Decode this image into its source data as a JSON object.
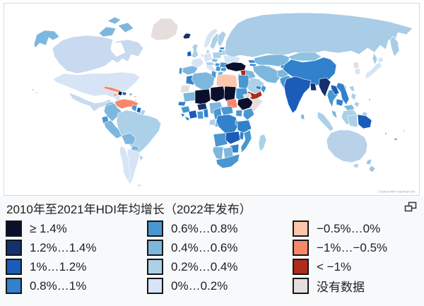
{
  "legend": {
    "title": "2010年至2021年HDI年均增长（2022年发布）",
    "columns": [
      {
        "items": [
          {
            "label": "≥ 1.4%",
            "color": "#0a102c"
          },
          {
            "label": "1.2%…1.4%",
            "color": "#14316f"
          },
          {
            "label": "1%…1.2%",
            "color": "#1b5cb8"
          },
          {
            "label": "0.8%…1%",
            "color": "#3181cd"
          }
        ]
      },
      {
        "items": [
          {
            "label": "0.6%…0.8%",
            "color": "#4997d0"
          },
          {
            "label": "0.4%…0.6%",
            "color": "#7db7dd"
          },
          {
            "label": "0.2%…0.4%",
            "color": "#abd0e8"
          },
          {
            "label": "0%…0.2%",
            "color": "#d6e4f5"
          }
        ]
      },
      {
        "items": [
          {
            "label": "−0.5%…0%",
            "color": "#fcc6ac"
          },
          {
            "label": "−1%…−0.5%",
            "color": "#f8876a"
          },
          {
            "label": "< −1%",
            "color": "#ae2c1e"
          },
          {
            "label": "没有数据",
            "color": "#e6dedd"
          }
        ]
      }
    ]
  },
  "icons": {
    "popout": "open-in-new-window"
  },
  "map": {
    "attribution": "Created with mapchart.net",
    "ocean_color": "#ffffff",
    "border_color": "#ffffff",
    "palette": {
      "d1": "#0a102c",
      "d2": "#14316f",
      "d3": "#1b5cb8",
      "d4": "#3181cd",
      "d5": "#4997d0",
      "d6": "#7db7dd",
      "d7": "#abd0e8",
      "d8": "#d6e4f5",
      "n1": "#fcc6ac",
      "n2": "#f8876a",
      "n3": "#ae2c1e",
      "nd": "#e6dedd",
      "ru": "#a9cce7",
      "ca": "#c8daf0",
      "mn": "#90c2e1",
      "au": "#b9d2ea",
      "nz": "#9cc6e3",
      "w": "#ffffff"
    },
    "regions": [
      [
        "greenland",
        "nd",
        "M213,52L217,35L228,26L242,26L252,36L249,49L237,56L221,57Z"
      ],
      [
        "alaska",
        "d6",
        "M48,63L52,49L63,43L77,44L84,52L75,57L69,53L65,64L56,61L50,68Z"
      ],
      [
        "canada",
        "ca",
        "M74,68L88,57L104,52L124,50L144,52L160,56L158,63L167,58L181,56L196,60L203,68L196,80L186,77L181,87L173,83L167,89L159,85L149,93L138,97L124,101L109,104L94,100L84,90L77,80Z"
      ],
      [
        "hudson-bay",
        "w",
        "M158,62L171,60L177,74L165,80L157,71Z"
      ],
      [
        "arctic-islands",
        "d6",
        "M140,47L150,38L164,40L159,50L146,52Z M167,36L181,32L189,40L177,46Z M152,30L162,24L171,28L163,34Z"
      ],
      [
        "usa",
        "d8",
        "M75,112L90,104L110,106L130,104L152,104L172,102L190,104L198,109L191,118L183,125L175,131L169,138L175,146L169,149L163,139L149,134L134,136L119,132L104,126L89,120L79,116Z"
      ],
      [
        "hawaii",
        "d7",
        "M45,126L48,126L48,128L45,128Z M51,130L53,130L53,132L51,132Z"
      ],
      [
        "mexico",
        "ca",
        "M97,131L111,136L123,142L135,146L147,144L155,140L159,146L151,150L141,152L133,158L127,150L115,146L103,140Z"
      ],
      [
        "yucatan",
        "d6",
        "M149,147L160,144L162,151L153,154Z"
      ],
      [
        "guatemala",
        "d3",
        "M151,152L160,154L156,161Z"
      ],
      [
        "honduras",
        "d4",
        "M159,154L170,156L166,162L158,160Z"
      ],
      [
        "nicaragua",
        "d4",
        "M161,162L170,161L167,169Z"
      ],
      [
        "costa-rica-panama",
        "d6",
        "M165,169L175,168L182,172L173,175Z"
      ],
      [
        "cuba",
        "n2",
        "M148,122L159,124L171,128L169,131L157,128L147,125Z"
      ],
      [
        "jamaica",
        "n2",
        "M161,133L166,133L165,136L160,135Z"
      ],
      [
        "haiti",
        "d1",
        "M168,129L173,130L172,135L167,134Z"
      ],
      [
        "dominican-republic",
        "d3",
        "M174,130L179,131L178,135L173,134Z"
      ],
      [
        "puerto-rico",
        "d6",
        "M183,132L187,132L187,135L183,135Z"
      ],
      [
        "lesser-antilles",
        "n2",
        "M190,136L192,136L192,138L190,138Z M191,141L193,141L193,143L191,143Z"
      ],
      [
        "venezuela",
        "n2",
        "M162,144L174,140L187,142L196,146L192,152L182,151L172,154L165,150Z"
      ],
      [
        "colombia",
        "d6",
        "M149,150L162,146L166,152L172,157L167,164L159,172L153,166L147,158Z"
      ],
      [
        "guyana",
        "d5",
        "M188,148L194,150L192,158L186,154Z"
      ],
      [
        "suriname",
        "d3",
        "M195,152L200,153L198,160L193,158Z"
      ],
      [
        "french-guiana",
        "d7",
        "M201,155L206,157L203,163L198,161Z"
      ],
      [
        "ecuador",
        "d5",
        "M144,166L152,164L154,172L146,175Z"
      ],
      [
        "peru",
        "d6",
        "M147,174L157,170L163,178L170,185L174,192L165,196L156,188L149,180Z"
      ],
      [
        "brazil",
        "d7",
        "M167,160L179,156L191,158L200,162L211,164L222,168L228,175L225,185L217,195L209,205L201,213L195,218L189,212L183,205L176,198L171,190L167,181L165,171Z"
      ],
      [
        "bolivia",
        "d6",
        "M172,192L184,188L192,195L189,204L177,204Z"
      ],
      [
        "paraguay",
        "d6",
        "M187,206L197,208L193,218L185,214Z"
      ],
      [
        "argentina",
        "d8",
        "M180,211L192,213L198,217L196,227L192,239L188,253L184,261L179,252L183,240L181,226Z"
      ],
      [
        "chile",
        "d8",
        "M171,206L177,210L181,222L183,236L185,250L181,257L175,244L173,228L169,214Z"
      ],
      [
        "uruguay",
        "d7",
        "M197,220L203,222L199,228Z"
      ],
      [
        "falkland-islands",
        "nd",
        "M195,261L200,261L200,264L195,264Z"
      ],
      [
        "iceland",
        "d2",
        "M259,52L263,47L270,48L268,54L261,55Z"
      ],
      [
        "norway",
        "d8",
        "M288,65L292,52L298,44L305,40L308,44L300,53L296,62L292,68Z"
      ],
      [
        "sweden",
        "d7",
        "M297,66L301,54L307,47L311,51L306,62L302,70Z"
      ],
      [
        "finland",
        "d7",
        "M308,62L309,50L315,44L320,48L316,58L312,66Z"
      ],
      [
        "baltic-states",
        "d4",
        "M311,67L318,67L317,70L311,70Z M310,71L317,71L316,74L310,74Z M309,75L316,75L315,78L309,78Z"
      ],
      [
        "united-kingdom",
        "d7",
        "M272,66L276,62L280,64L278,71L281,78L276,82L271,80L274,72Z"
      ],
      [
        "ireland",
        "d3",
        "M265,74L270,72L271,79L265,80Z"
      ],
      [
        "denmark",
        "d7",
        "M292,71L296,71L296,75L292,75Z"
      ],
      [
        "germany",
        "d8",
        "M288,77L298,75L300,84L290,88Z"
      ],
      [
        "benelux",
        "d8",
        "M283,76L289,78L286,82Z"
      ],
      [
        "france",
        "d8",
        "M273,84L284,82L288,88L284,94L276,96L270,90Z"
      ],
      [
        "spain",
        "d6",
        "M259,96L272,93L280,96L276,103L266,106L258,102Z"
      ],
      [
        "portugal",
        "d5",
        "M254,96L258,96L257,105L253,104Z"
      ],
      [
        "italy",
        "d8",
        "M293,90L300,92L304,98L308,103L304,106L298,100L292,96Z"
      ],
      [
        "switzerland-austria",
        "d7",
        "M291,88L301,88L304,92L293,93Z"
      ],
      [
        "czech-slovakia",
        "d6",
        "M300,83L309,84L306,88L300,87Z"
      ],
      [
        "poland",
        "d7",
        "M301,74L312,74L313,82L302,83Z"
      ],
      [
        "hungary",
        "d5",
        "M305,89L312,90L309,94L304,93Z"
      ],
      [
        "balkans",
        "d5",
        "M306,94L313,94L311,101L305,100Z"
      ],
      [
        "greece",
        "d6",
        "M309,102L316,101L314,109L308,106Z"
      ],
      [
        "bulgaria",
        "d5",
        "M313,96L321,96L319,101L312,100Z"
      ],
      [
        "romania",
        "d5",
        "M312,88L323,89L321,96L311,95Z"
      ],
      [
        "ukraine",
        "d8",
        "M316,79L330,78L340,82L336,90L324,92L318,87Z"
      ],
      [
        "belarus",
        "d7",
        "M314,71L324,71L323,78L314,78Z"
      ],
      [
        "russia",
        "ru",
        "M318,76L320,58L327,44L336,33L350,26L372,21L398,19L430,18L462,19L495,22L525,26L552,31L584,40L575,49L563,46L558,60L550,56L546,70L538,64L530,74L520,68L508,77L497,72L478,75L458,72L438,77L418,74L398,79L378,76L358,81L340,78L328,81Z"
      ],
      [
        "russia-far-east",
        "ru",
        "M556,51L563,59L565,72L558,80L554,69L552,57Z M529,75L534,83L531,92L527,83Z"
      ],
      [
        "kazakhstan",
        "d6",
        "M360,82L378,78L398,77L410,81L407,90L395,94L381,92L367,92L359,88Z"
      ],
      [
        "uzbekistan",
        "d4",
        "M366,94L380,93L390,98L384,103L372,100Z"
      ],
      [
        "turkmenistan",
        "d5",
        "M362,96L372,101L380,105L374,110L363,104Z"
      ],
      [
        "kyrgyzstan",
        "d4",
        "M398,92L410,92L407,97L397,96Z"
      ],
      [
        "tajikistan",
        "d4",
        "M397,98L408,99L405,104L396,102Z"
      ],
      [
        "caucasus",
        "d4",
        "M351,85L359,85L362,89L353,89Z M354,90L363,91L361,94L353,93Z"
      ],
      [
        "turkey",
        "d1",
        "M318,92L330,88L342,89L348,93L346,99L334,101L322,98Z"
      ],
      [
        "syria",
        "n3",
        "M340,100L350,99L352,107L343,110Z"
      ],
      [
        "lebanon-israel",
        "d7",
        "M337,104L340,104L339,114L336,113Z"
      ],
      [
        "jordan",
        "d7",
        "M341,110L347,108L346,115L340,114Z"
      ],
      [
        "iraq",
        "d6",
        "M348,99L358,101L362,109L353,112L347,106Z"
      ],
      [
        "iran",
        "d6",
        "M358,94L372,92L385,96L394,101L396,110L390,118L378,116L367,109L359,101Z"
      ],
      [
        "afghanistan",
        "d6",
        "M392,100L404,98L410,104L402,111L393,108Z"
      ],
      [
        "pakistan",
        "d5",
        "M396,111L408,107L414,111L410,119L402,125L397,117Z"
      ],
      [
        "saudi-arabia",
        "d7",
        "M356,110L366,112L374,118L371,128L362,133L352,128L349,120L352,114Z"
      ],
      [
        "yemen",
        "n3",
        "M351,129L361,133L369,129L371,135L359,142L351,137Z"
      ],
      [
        "oman",
        "d5",
        "M372,120L377,124L373,132L369,126Z"
      ],
      [
        "uae",
        "d4",
        "M363,121L370,123L368,127L362,125Z"
      ],
      [
        "morocco",
        "d4",
        "M264,108L276,106L282,112L274,120L263,118Z"
      ],
      [
        "western-sahara",
        "nd",
        "M257,121L269,120L267,130L255,131Z"
      ],
      [
        "algeria",
        "d6",
        "M274,104L292,102L304,107L302,120L291,130L277,122L271,112Z"
      ],
      [
        "tunisia",
        "d5",
        "M300,100L306,102L305,111L299,107Z"
      ],
      [
        "libya",
        "n1",
        "M307,107L320,105L334,107L336,122L329,130L315,128L306,120Z"
      ],
      [
        "egypt",
        "d5",
        "M337,106L352,107L352,118L349,126L338,124Z"
      ],
      [
        "mauritania",
        "d6",
        "M259,132L276,130L278,142L261,144Z"
      ],
      [
        "senegal",
        "d4",
        "M253,144L263,144L261,150L252,149Z"
      ],
      [
        "guinea",
        "d5",
        "M256,152L267,150L269,158L259,160Z"
      ],
      [
        "sierra-leone-liberia",
        "d4",
        "M256,160L262,162L258,166Z M261,164L269,168L265,171Z"
      ],
      [
        "mali",
        "d1",
        "M276,128L296,126L298,142L288,148L276,146Z"
      ],
      [
        "burkina-faso",
        "d2",
        "M279,148L291,146L293,154L281,156Z"
      ],
      [
        "ivory-coast",
        "d3",
        "M267,158L277,156L279,166L269,168Z"
      ],
      [
        "ghana",
        "d5",
        "M279,158L287,157L288,168L280,168Z"
      ],
      [
        "togo-benin",
        "d4",
        "M288,155L294,154L295,166L289,166Z"
      ],
      [
        "niger",
        "d1",
        "M298,124L316,122L320,138L306,144L298,140Z"
      ],
      [
        "nigeria",
        "d6",
        "M296,146L312,144L316,156L308,164L298,160Z"
      ],
      [
        "chad",
        "d1",
        "M318,122L334,123L332,140L322,146L317,138Z"
      ],
      [
        "sudan",
        "d5",
        "M334,125L349,125L351,135L343,143L334,139Z"
      ],
      [
        "eritrea",
        "nd",
        "M344,134L354,132L356,137L346,140Z"
      ],
      [
        "ethiopia",
        "d1",
        "M337,141L351,138L358,144L355,152L343,156L336,148Z"
      ],
      [
        "somalia",
        "nd",
        "M356,141L365,139L372,143L362,155L354,164L353,153L358,147Z"
      ],
      [
        "south-sudan",
        "n2",
        "M321,142L334,140L336,152L322,154Z"
      ],
      [
        "kenya",
        "d5",
        "M345,156L356,153L360,162L350,170L344,164Z"
      ],
      [
        "uganda",
        "d5",
        "M334,156L343,156L342,165L334,164Z"
      ],
      [
        "central-african-republic",
        "d5",
        "M312,152L328,150L330,160L316,163Z"
      ],
      [
        "cameroon",
        "d5",
        "M302,156L312,152L314,166L304,170Z"
      ],
      [
        "gabon",
        "d7",
        "M297,170L305,168L304,178L296,176Z"
      ],
      [
        "congo",
        "d6",
        "M306,168L313,168L312,180L304,179Z"
      ],
      [
        "dr-congo",
        "d4",
        "M308,164L324,162L334,166L336,180L330,190L318,188L310,180L306,172Z"
      ],
      [
        "rwanda-burundi",
        "d5",
        "M333,171L337,171L337,177L333,177Z"
      ],
      [
        "tanzania",
        "d4",
        "M336,172L352,170L356,182L344,188L336,184Z"
      ],
      [
        "angola",
        "d5",
        "M302,190L320,188L322,204L305,208Z"
      ],
      [
        "zambia",
        "d3",
        "M320,188L338,186L340,198L326,204L319,198Z"
      ],
      [
        "malawi",
        "d4",
        "M340,186L345,188L344,198L339,196Z"
      ],
      [
        "mozambique",
        "d5",
        "M345,188L354,184L356,196L348,210L342,216L341,208L347,198Z"
      ],
      [
        "zimbabwe",
        "d4",
        "M326,206L338,204L337,216L327,216Z"
      ],
      [
        "botswana",
        "d6",
        "M316,210L328,208L330,222L318,224Z"
      ],
      [
        "namibia",
        "d6",
        "M302,208L316,208L314,226L306,224L301,214Z"
      ],
      [
        "south-africa",
        "d5",
        "M306,226L318,224L332,220L339,218L337,228L327,236L315,238L307,232Z"
      ],
      [
        "madagascar",
        "d7",
        "M368,192L374,190L377,198L373,210L368,214L366,203Z"
      ],
      [
        "mongolia",
        "mn",
        "M408,80L425,74L445,74L455,80L445,86L424,86L412,84Z"
      ],
      [
        "china",
        "d4",
        "M402,92L412,84L428,88L445,86L458,81L468,84L476,92L474,104L466,112L456,118L444,122L431,118L419,112L407,104L400,98Z"
      ],
      [
        "north-korea",
        "nd",
        "M500,89L507,87L508,96L501,97Z"
      ],
      [
        "south-korea",
        "d8",
        "M502,98L509,97L510,105L503,105Z"
      ],
      [
        "japan",
        "d8",
        "M518,104L526,98L532,91L538,88L540,94L532,101L524,108L517,112Z M534,84L540,80L543,86L537,89Z"
      ],
      [
        "taiwan",
        "d7",
        "M486,121L490,121L490,127L486,127Z"
      ],
      [
        "india",
        "d3",
        "M405,112L418,108L430,112L440,114L438,124L430,132L424,144L419,156L414,160L408,148L404,134L402,122Z"
      ],
      [
        "bangladesh",
        "d2",
        "M439,118L446,118L448,128L440,128Z"
      ],
      [
        "sri-lanka",
        "d6",
        "M426,162L430,162L431,169L426,168Z"
      ],
      [
        "myanmar",
        "d2",
        "M452,112L462,110L468,116L464,126L460,137L455,130L451,121Z"
      ],
      [
        "thailand",
        "d5",
        "M465,128L473,126L478,134L472,142L470,152L466,144L463,135Z"
      ],
      [
        "laos",
        "d3",
        "M468,120L476,122L480,132L474,134L469,126Z"
      ],
      [
        "vietnam",
        "d4",
        "M478,117L486,119L490,129L494,140L490,148L484,140L482,130L476,123Z"
      ],
      [
        "cambodia",
        "d4",
        "M476,140L486,142L484,150L476,148Z"
      ],
      [
        "malaysia",
        "d6",
        "M469,156L475,158L477,168L471,163Z M486,150L498,148L502,154L492,157Z"
      ],
      [
        "indonesia-sumatra",
        "d7",
        "M450,158L458,162L466,172L472,182L468,186L458,176L449,166Z"
      ],
      [
        "indonesia-java",
        "d7",
        "M477,184L493,186L508,188L506,192L490,190L477,188Z"
      ],
      [
        "indonesia-borneo",
        "d7",
        "M486,157L500,155L506,162L502,174L490,176L483,166Z"
      ],
      [
        "indonesia-sulawesi",
        "d7",
        "M514,158L520,160L518,168L522,177L516,176L511,166Z"
      ],
      [
        "philippines",
        "d7",
        "M494,123L500,121L502,130L497,128Z M498,132L504,134L502,142L497,138Z M503,144L509,146L506,152L501,148Z"
      ],
      [
        "indonesia-papua",
        "d7",
        "M492,164L505,162L506,180L495,178Z"
      ],
      [
        "papua-new-guinea",
        "d3",
        "M506,162L518,164L526,170L524,180L514,182L507,176Z"
      ],
      [
        "australia",
        "au",
        "M462,198L468,188L480,184L494,184L506,188L516,194L520,204L518,216L510,226L498,230L485,228L473,221L464,210Z"
      ],
      [
        "tasmania",
        "au",
        "M501,232L508,232L506,238L500,236Z"
      ],
      [
        "new-zealand",
        "nz",
        "M520,227L526,225L524,233L518,232Z M525,234L531,238L527,244L522,240Z"
      ],
      [
        "fiji",
        "d4",
        "M558,196L562,196L562,198L558,198Z"
      ],
      [
        "pacific-island-1",
        "n2",
        "M571,184L573,184L573,186L571,186Z"
      ],
      [
        "pacific-island-2",
        "d4",
        "M545,188L547,188L547,190L545,190Z"
      ],
      [
        "micronesia",
        "d5",
        "M522,140L524,140L524,142L522,142Z"
      ]
    ]
  }
}
